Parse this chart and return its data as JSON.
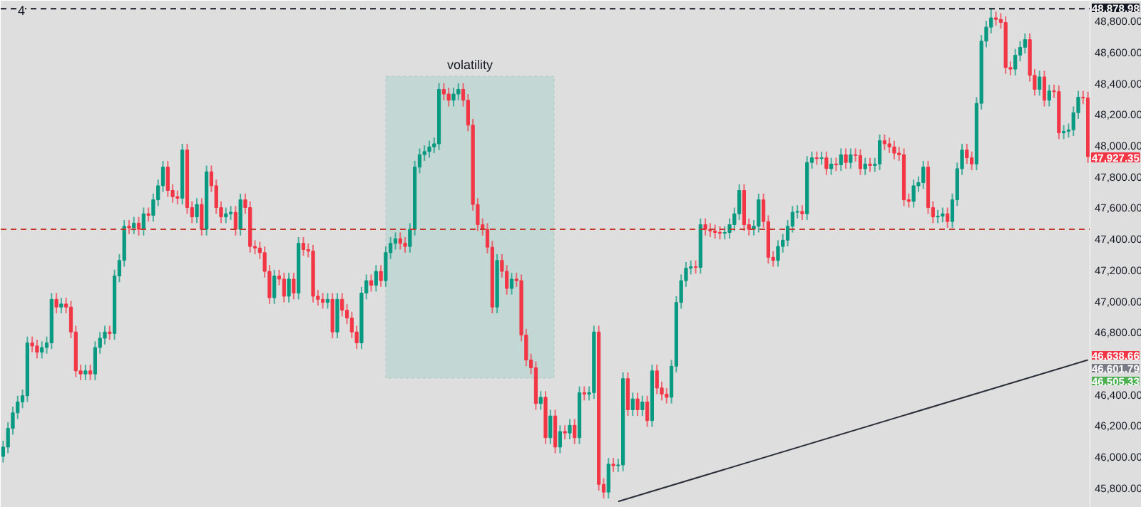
{
  "chart_data": {
    "type": "candlestick",
    "categories": [
      null,
      null,
      null,
      null,
      null,
      null,
      null,
      null,
      null,
      null,
      null,
      null,
      null,
      null,
      null,
      null,
      null,
      null,
      null,
      null,
      null,
      null,
      null,
      null,
      null,
      null,
      null,
      null,
      null,
      null,
      null,
      null,
      null,
      null,
      null,
      null,
      null,
      null,
      null,
      null,
      null,
      null,
      null,
      null,
      null,
      null,
      null,
      null,
      null,
      null,
      null,
      null,
      null,
      null,
      null,
      null,
      null,
      null,
      null,
      null,
      null,
      null,
      null,
      null,
      null,
      null,
      null,
      null,
      null,
      null,
      null,
      null,
      null,
      null,
      null,
      null,
      null,
      null,
      null,
      null,
      null,
      null,
      null,
      null,
      null,
      null,
      null,
      null,
      null,
      null,
      null,
      null,
      null,
      null,
      null,
      null,
      null,
      null,
      null,
      null,
      null,
      null,
      null,
      null,
      null,
      null,
      null,
      null,
      null,
      null,
      null,
      null,
      null,
      null,
      null,
      null,
      null,
      null,
      null,
      null,
      null,
      null,
      null,
      null,
      null,
      null,
      null,
      null,
      null,
      null,
      null,
      null,
      null,
      null,
      null,
      null,
      null,
      null,
      null,
      null,
      null,
      null,
      null,
      null,
      null,
      null,
      null,
      null,
      null,
      null,
      null,
      null,
      null,
      null,
      null,
      null,
      null,
      null,
      null,
      null,
      null,
      null,
      null,
      null,
      null,
      null,
      null,
      null,
      null,
      null,
      null,
      null,
      null,
      null,
      null,
      null,
      null,
      null,
      null,
      null,
      null,
      null,
      null,
      null,
      null,
      null,
      null,
      null,
      null,
      null,
      null,
      null,
      null,
      null,
      null,
      null,
      null,
      null,
      null,
      null,
      null,
      null,
      null,
      null,
      null,
      null,
      null,
      null,
      null,
      null,
      null,
      null,
      null,
      null,
      null,
      null,
      null,
      null,
      null,
      null,
      null,
      null,
      null,
      null,
      null
    ],
    "ohlc": [
      [
        46000,
        46100,
        45960,
        46060
      ],
      [
        46060,
        46220,
        46020,
        46180
      ],
      [
        46180,
        46320,
        46140,
        46280
      ],
      [
        46280,
        46390,
        46240,
        46350
      ],
      [
        46350,
        46430,
        46310,
        46390
      ],
      [
        46390,
        46770,
        46350,
        46730
      ],
      [
        46730,
        46770,
        46670,
        46710
      ],
      [
        46710,
        46750,
        46630,
        46670
      ],
      [
        46670,
        46740,
        46630,
        46700
      ],
      [
        46700,
        46770,
        46660,
        46730
      ],
      [
        46730,
        47050,
        46690,
        47010
      ],
      [
        47010,
        47050,
        46920,
        46960
      ],
      [
        46960,
        47020,
        46920,
        46980
      ],
      [
        46980,
        47020,
        46920,
        46960
      ],
      [
        46960,
        47000,
        46760,
        46800
      ],
      [
        46800,
        46840,
        46510,
        46550
      ],
      [
        46550,
        46590,
        46490,
        46530
      ],
      [
        46530,
        46590,
        46490,
        46550
      ],
      [
        46550,
        46590,
        46490,
        46530
      ],
      [
        46530,
        46740,
        46490,
        46700
      ],
      [
        46700,
        46800,
        46660,
        46760
      ],
      [
        46760,
        46840,
        46720,
        46800
      ],
      [
        46800,
        46840,
        46750,
        46790
      ],
      [
        46790,
        47200,
        46750,
        47160
      ],
      [
        47160,
        47300,
        47120,
        47260
      ],
      [
        47260,
        47520,
        47220,
        47480
      ],
      [
        47480,
        47520,
        47430,
        47470
      ],
      [
        47470,
        47540,
        47430,
        47500
      ],
      [
        47500,
        47540,
        47420,
        47460
      ],
      [
        47460,
        47600,
        47420,
        47560
      ],
      [
        47560,
        47600,
        47510,
        47550
      ],
      [
        47550,
        47690,
        47510,
        47650
      ],
      [
        47650,
        47780,
        47610,
        47740
      ],
      [
        47740,
        47900,
        47700,
        47860
      ],
      [
        47860,
        47900,
        47670,
        47710
      ],
      [
        47710,
        47750,
        47630,
        47670
      ],
      [
        47670,
        47710,
        47620,
        47660
      ],
      [
        47660,
        48010,
        47620,
        47970
      ],
      [
        47970,
        48010,
        47560,
        47600
      ],
      [
        47600,
        47640,
        47500,
        47540
      ],
      [
        47540,
        47660,
        47500,
        47620
      ],
      [
        47620,
        47660,
        47420,
        47460
      ],
      [
        47460,
        47870,
        47420,
        47830
      ],
      [
        47830,
        47870,
        47700,
        47740
      ],
      [
        47740,
        47780,
        47560,
        47600
      ],
      [
        47600,
        47640,
        47500,
        47540
      ],
      [
        47540,
        47600,
        47500,
        47560
      ],
      [
        47560,
        47610,
        47520,
        47570
      ],
      [
        47570,
        47610,
        47420,
        47460
      ],
      [
        47460,
        47690,
        47420,
        47650
      ],
      [
        47650,
        47690,
        47560,
        47600
      ],
      [
        47600,
        47640,
        47310,
        47350
      ],
      [
        47350,
        47390,
        47300,
        47340
      ],
      [
        47340,
        47380,
        47270,
        47310
      ],
      [
        47310,
        47350,
        47150,
        47190
      ],
      [
        47190,
        47230,
        46980,
        47020
      ],
      [
        47020,
        47200,
        46980,
        47160
      ],
      [
        47160,
        47200,
        47100,
        47140
      ],
      [
        47140,
        47180,
        46990,
        47030
      ],
      [
        47030,
        47180,
        46990,
        47140
      ],
      [
        47140,
        47180,
        47010,
        47050
      ],
      [
        47050,
        47410,
        47010,
        47370
      ],
      [
        47370,
        47410,
        47290,
        47330
      ],
      [
        47330,
        47370,
        47280,
        47320
      ],
      [
        47320,
        47360,
        46990,
        47030
      ],
      [
        47030,
        47070,
        46970,
        47010
      ],
      [
        47010,
        47050,
        46950,
        46990
      ],
      [
        46990,
        47050,
        46950,
        47010
      ],
      [
        47010,
        47050,
        46760,
        46800
      ],
      [
        46800,
        47050,
        46760,
        47010
      ],
      [
        47010,
        47050,
        46900,
        46940
      ],
      [
        46940,
        46980,
        46850,
        46890
      ],
      [
        46890,
        46930,
        46760,
        46800
      ],
      [
        46800,
        46840,
        46690,
        46730
      ],
      [
        46730,
        47090,
        46690,
        47050
      ],
      [
        47050,
        47170,
        47010,
        47130
      ],
      [
        47130,
        47170,
        47060,
        47100
      ],
      [
        47100,
        47230,
        47060,
        47190
      ],
      [
        47190,
        47230,
        47090,
        47130
      ],
      [
        47130,
        47350,
        47090,
        47310
      ],
      [
        47310,
        47410,
        47270,
        47370
      ],
      [
        47370,
        47440,
        47330,
        47400
      ],
      [
        47400,
        47440,
        47330,
        47370
      ],
      [
        47370,
        47410,
        47310,
        47350
      ],
      [
        47350,
        47500,
        47310,
        47460
      ],
      [
        47460,
        47900,
        47420,
        47860
      ],
      [
        47860,
        47980,
        47820,
        47940
      ],
      [
        47940,
        48000,
        47900,
        47960
      ],
      [
        47960,
        48030,
        47920,
        47990
      ],
      [
        47990,
        48050,
        47950,
        48010
      ],
      [
        48010,
        48400,
        47970,
        48360
      ],
      [
        48360,
        48400,
        48290,
        48330
      ],
      [
        48330,
        48370,
        48250,
        48290
      ],
      [
        48290,
        48370,
        48250,
        48330
      ],
      [
        48330,
        48400,
        48290,
        48360
      ],
      [
        48360,
        48400,
        48250,
        48290
      ],
      [
        48290,
        48330,
        48090,
        48130
      ],
      [
        48130,
        48170,
        47580,
        47620
      ],
      [
        47620,
        47660,
        47450,
        47490
      ],
      [
        47490,
        47530,
        47420,
        47460
      ],
      [
        47460,
        47500,
        47305,
        47345
      ],
      [
        47345,
        47385,
        46920,
        46960
      ],
      [
        46960,
        47300,
        46920,
        47260
      ],
      [
        47260,
        47300,
        47150,
        47190
      ],
      [
        47190,
        47230,
        47040,
        47080
      ],
      [
        47080,
        47180,
        47040,
        47140
      ],
      [
        47140,
        47180,
        47090,
        47130
      ],
      [
        47130,
        47170,
        46740,
        46780
      ],
      [
        46780,
        46820,
        46580,
        46620
      ],
      [
        46620,
        46660,
        46530,
        46570
      ],
      [
        46570,
        46610,
        46300,
        46340
      ],
      [
        46340,
        46420,
        46300,
        46380
      ],
      [
        46380,
        46420,
        46080,
        46120
      ],
      [
        46120,
        46300,
        46080,
        46260
      ],
      [
        46260,
        46300,
        46020,
        46060
      ],
      [
        46060,
        46200,
        46020,
        46160
      ],
      [
        46160,
        46200,
        46110,
        46150
      ],
      [
        46150,
        46240,
        46110,
        46200
      ],
      [
        46200,
        46240,
        46080,
        46120
      ],
      [
        46120,
        46450,
        46080,
        46410
      ],
      [
        46410,
        46450,
        46360,
        46400
      ],
      [
        46400,
        46450,
        46360,
        46410
      ],
      [
        46410,
        46840,
        46370,
        46800
      ],
      [
        46800,
        46840,
        45780,
        45820
      ],
      [
        45820,
        45860,
        45730,
        45770
      ],
      [
        45770,
        45990,
        45730,
        45950
      ],
      [
        45950,
        45990,
        45900,
        45940
      ],
      [
        45940,
        45985,
        45900,
        45945
      ],
      [
        45945,
        46540,
        45905,
        46500
      ],
      [
        46500,
        46540,
        46260,
        46300
      ],
      [
        46300,
        46410,
        46260,
        46370
      ],
      [
        46370,
        46410,
        46260,
        46300
      ],
      [
        46300,
        46390,
        46260,
        46350
      ],
      [
        46350,
        46390,
        46190,
        46230
      ],
      [
        46230,
        46590,
        46190,
        46550
      ],
      [
        46550,
        46590,
        46400,
        46440
      ],
      [
        46440,
        46480,
        46360,
        46400
      ],
      [
        46400,
        46440,
        46340,
        46380
      ],
      [
        46380,
        46620,
        46340,
        46580
      ],
      [
        46580,
        47030,
        46540,
        46990
      ],
      [
        46990,
        47170,
        46950,
        47130
      ],
      [
        47130,
        47250,
        47090,
        47210
      ],
      [
        47210,
        47260,
        47170,
        47220
      ],
      [
        47220,
        47260,
        47175,
        47215
      ],
      [
        47215,
        47530,
        47175,
        47490
      ],
      [
        47490,
        47530,
        47420,
        47460
      ],
      [
        47460,
        47500,
        47410,
        47450
      ],
      [
        47450,
        47490,
        47400,
        47440
      ],
      [
        47440,
        47480,
        47395,
        47435
      ],
      [
        47435,
        47480,
        47395,
        47440
      ],
      [
        47440,
        47530,
        47400,
        47490
      ],
      [
        47490,
        47600,
        47450,
        47560
      ],
      [
        47560,
        47750,
        47520,
        47710
      ],
      [
        47710,
        47750,
        47450,
        47490
      ],
      [
        47490,
        47530,
        47420,
        47460
      ],
      [
        47460,
        47520,
        47420,
        47480
      ],
      [
        47480,
        47690,
        47440,
        47650
      ],
      [
        47650,
        47690,
        47470,
        47510
      ],
      [
        47510,
        47550,
        47240,
        47280
      ],
      [
        47280,
        47320,
        47220,
        47260
      ],
      [
        47260,
        47390,
        47220,
        47350
      ],
      [
        47350,
        47430,
        47310,
        47390
      ],
      [
        47390,
        47520,
        47350,
        47480
      ],
      [
        47480,
        47610,
        47440,
        47570
      ],
      [
        47570,
        47615,
        47530,
        47575
      ],
      [
        47575,
        47615,
        47520,
        47560
      ],
      [
        47560,
        47930,
        47520,
        47890
      ],
      [
        47890,
        47960,
        47850,
        47920
      ],
      [
        47920,
        47960,
        47875,
        47915
      ],
      [
        47915,
        47960,
        47875,
        47920
      ],
      [
        47920,
        47960,
        47810,
        47850
      ],
      [
        47850,
        47920,
        47810,
        47880
      ],
      [
        47880,
        47920,
        47835,
        47875
      ],
      [
        47875,
        47980,
        47835,
        47940
      ],
      [
        47940,
        47980,
        47850,
        47890
      ],
      [
        47890,
        47980,
        47850,
        47940
      ],
      [
        47940,
        47980,
        47895,
        47935
      ],
      [
        47935,
        47975,
        47810,
        47850
      ],
      [
        47850,
        47920,
        47810,
        47880
      ],
      [
        47880,
        47920,
        47830,
        47870
      ],
      [
        47870,
        47920,
        47830,
        47880
      ],
      [
        47880,
        48070,
        47840,
        48030
      ],
      [
        48030,
        48070,
        47970,
        48010
      ],
      [
        48010,
        48050,
        47950,
        47990
      ],
      [
        47990,
        48030,
        47910,
        47950
      ],
      [
        47950,
        47990,
        47900,
        47940
      ],
      [
        47940,
        47980,
        47610,
        47650
      ],
      [
        47650,
        47690,
        47600,
        47640
      ],
      [
        47640,
        47780,
        47600,
        47740
      ],
      [
        47740,
        47800,
        47700,
        47760
      ],
      [
        47760,
        47900,
        47720,
        47860
      ],
      [
        47860,
        47900,
        47560,
        47600
      ],
      [
        47600,
        47640,
        47500,
        47540
      ],
      [
        47540,
        47585,
        47500,
        47545
      ],
      [
        47545,
        47600,
        47505,
        47560
      ],
      [
        47560,
        47600,
        47470,
        47510
      ],
      [
        47510,
        47690,
        47470,
        47650
      ],
      [
        47650,
        47890,
        47610,
        47850
      ],
      [
        47850,
        48010,
        47810,
        47970
      ],
      [
        47970,
        48010,
        47880,
        47920
      ],
      [
        47920,
        47960,
        47840,
        47880
      ],
      [
        47880,
        48310,
        47840,
        48270
      ],
      [
        48270,
        48710,
        48230,
        48670
      ],
      [
        48670,
        48800,
        48630,
        48760
      ],
      [
        48760,
        48878.98,
        48720,
        48820
      ],
      [
        48820,
        48860,
        48770,
        48810
      ],
      [
        48810,
        48850,
        48750,
        48790
      ],
      [
        48790,
        48830,
        48460,
        48500
      ],
      [
        48500,
        48540,
        48450,
        48490
      ],
      [
        48490,
        48620,
        48450,
        48580
      ],
      [
        48580,
        48670,
        48540,
        48630
      ],
      [
        48630,
        48720,
        48590,
        48680
      ],
      [
        48680,
        48720,
        48410,
        48450
      ],
      [
        48450,
        48490,
        48320,
        48360
      ],
      [
        48360,
        48480,
        48320,
        48440
      ],
      [
        48440,
        48480,
        48250,
        48290
      ],
      [
        48290,
        48390,
        48250,
        48350
      ],
      [
        48350,
        48390,
        48305,
        48345
      ],
      [
        48345,
        48385,
        48040,
        48080
      ],
      [
        48080,
        48130,
        48040,
        48090
      ],
      [
        48090,
        48140,
        48050,
        48100
      ],
      [
        48100,
        48250,
        48060,
        48210
      ],
      [
        48210,
        48350,
        48170,
        48310
      ],
      [
        48310,
        48350,
        48265,
        48305
      ],
      [
        48305,
        48345,
        47887.35,
        47927.35
      ]
    ],
    "series": [
      {
        "type": "line",
        "color": "#2a2e39",
        "values": [
          null,
          null,
          null,
          null,
          null,
          null,
          null,
          null,
          null,
          null,
          null,
          null,
          null,
          null,
          null,
          null,
          null,
          null,
          null,
          null,
          null,
          null,
          null,
          null,
          null,
          null,
          null,
          null,
          null,
          null,
          null,
          null,
          null,
          null,
          null,
          null,
          null,
          null,
          null,
          null,
          null,
          null,
          null,
          null,
          null,
          null,
          null,
          null,
          null,
          null,
          null,
          null,
          null,
          null,
          null,
          null,
          null,
          null,
          null,
          null,
          null,
          null,
          null,
          null,
          null,
          null,
          null,
          null,
          null,
          null,
          null,
          null,
          null,
          null,
          null,
          null,
          null,
          null,
          null,
          null,
          null,
          null,
          null,
          null,
          null,
          null,
          null,
          null,
          null,
          null,
          null,
          null,
          null,
          null,
          null,
          null,
          null,
          null,
          null,
          null,
          null,
          null,
          null,
          null,
          null,
          null,
          null,
          null,
          null,
          null,
          null,
          null,
          null,
          null,
          null,
          null,
          null,
          null,
          null,
          null,
          null,
          null,
          null,
          null,
          null,
          null,
          null,
          45710,
          null,
          null,
          null,
          null,
          null,
          null,
          null,
          null,
          null,
          null,
          null,
          null,
          null,
          null,
          null,
          null,
          null,
          null,
          null,
          null,
          null,
          null,
          null,
          null,
          null,
          null,
          null,
          null,
          null,
          null,
          null,
          null,
          null,
          null,
          null,
          null,
          null,
          null,
          null,
          null,
          null,
          null,
          null,
          null,
          null,
          null,
          null,
          null,
          null,
          null,
          null,
          null,
          null,
          null,
          null,
          null,
          null,
          null,
          null,
          null,
          null,
          null,
          null,
          null,
          null,
          null,
          null,
          null,
          null,
          null,
          null,
          null,
          null,
          null,
          null,
          null,
          null,
          null,
          null,
          null,
          null,
          null,
          null,
          null,
          null,
          null,
          null,
          null,
          null,
          null,
          null,
          null,
          null,
          null,
          null,
          null,
          46620
        ]
      }
    ],
    "ylim": [
      45670,
      48930
    ],
    "yticks": [
      {
        "value": 45800,
        "label": "45,800.00"
      },
      {
        "value": 46000,
        "label": "46,000.00"
      },
      {
        "value": 46200,
        "label": "46,200.00"
      },
      {
        "value": 46400,
        "label": "46,400.00"
      },
      {
        "value": 46800,
        "label": "46,800.00"
      },
      {
        "value": 47000,
        "label": "47,000.00"
      },
      {
        "value": 47200,
        "label": "47,200.00"
      },
      {
        "value": 47400,
        "label": "47,400.00"
      },
      {
        "value": 47600,
        "label": "47,600.00"
      },
      {
        "value": 47800,
        "label": "47,800.00"
      },
      {
        "value": 48000,
        "label": "48,000.00"
      },
      {
        "value": 48200,
        "label": "48,200.00"
      },
      {
        "value": 48400,
        "label": "48,400.00"
      },
      {
        "value": 48600,
        "label": "48,600.00"
      },
      {
        "value": 48800,
        "label": "48,800.00"
      }
    ],
    "tick_labels": "y",
    "ref_lines": [
      {
        "axis": "y",
        "value": 48878.98,
        "color": "#131722",
        "line_style": "dashed"
      },
      {
        "axis": "y",
        "value": 47460,
        "color": "#c0392b",
        "line_style": "dashed"
      }
    ],
    "annotations": [
      "4",
      "volatility",
      "48,878.98",
      "47,927.35",
      "46,638.66",
      "46,601.79",
      "46,505.33"
    ]
  }
}
